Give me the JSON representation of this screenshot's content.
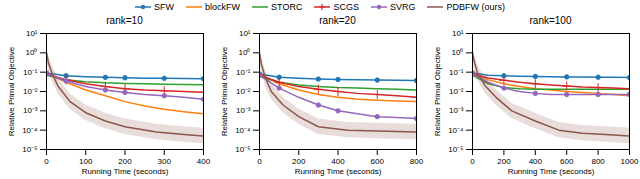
{
  "chart_data": [
    {
      "type": "line",
      "title": "rank=10",
      "x_label": "Running Time (seconds)",
      "y_label": "Relative Primal Objective",
      "log": "y",
      "grid": false,
      "legend": "top",
      "xlim": [
        0,
        400
      ],
      "xticks": [
        0,
        100,
        200,
        300,
        400
      ],
      "ylim": [
        1e-05,
        10
      ],
      "yticks": [
        {
          "value": 1e-05,
          "label": "10⁻⁵"
        },
        {
          "value": 0.0001,
          "label": "10⁻⁴"
        },
        {
          "value": 0.001,
          "label": "10⁻³"
        },
        {
          "value": 0.01,
          "label": "10⁻²"
        },
        {
          "value": 0.1,
          "label": "10⁻¹"
        },
        {
          "value": 1,
          "label": "10⁰"
        },
        {
          "value": 10,
          "label": "10¹"
        }
      ],
      "series": [
        {
          "name": "SFW",
          "color": "#1f77b4",
          "marker": "circle",
          "x": [
            0,
            50,
            100,
            150,
            200,
            250,
            300,
            350,
            400
          ],
          "values": [
            0.09,
            0.065,
            0.058,
            0.054,
            0.051,
            0.049,
            0.048,
            0.047,
            0.046
          ]
        },
        {
          "name": "blockFW",
          "color": "#ff7f0e",
          "x": [
            0,
            50,
            100,
            150,
            200,
            250,
            300,
            350,
            400
          ],
          "values": [
            0.09,
            0.03,
            0.012,
            0.006,
            0.003,
            0.0018,
            0.0012,
            0.0009,
            0.0007
          ]
        },
        {
          "name": "STORC",
          "color": "#2ca02c",
          "x": [
            0,
            50,
            100,
            150,
            200,
            250,
            300,
            350,
            400
          ],
          "values": [
            0.07,
            0.04,
            0.032,
            0.028,
            0.026,
            0.025,
            0.024,
            0.023,
            0.022
          ]
        },
        {
          "name": "SCGS",
          "color": "#d62728",
          "marker": "plus",
          "x": [
            0,
            50,
            100,
            150,
            200,
            250,
            300,
            350,
            400
          ],
          "values": [
            0.08,
            0.04,
            0.025,
            0.018,
            0.014,
            0.012,
            0.011,
            0.01,
            0.009
          ]
        },
        {
          "name": "SVRG",
          "color": "#9467bd",
          "marker": "circle",
          "x": [
            0,
            50,
            100,
            150,
            200,
            250,
            300,
            350,
            400
          ],
          "values": [
            0.08,
            0.035,
            0.018,
            0.012,
            0.009,
            0.007,
            0.006,
            0.005,
            0.004
          ]
        },
        {
          "name": "PDBFW (ours)",
          "color": "#8c564b",
          "x": [
            0,
            5,
            15,
            30,
            60,
            100,
            150,
            200,
            280,
            350,
            400
          ],
          "values": [
            1.0,
            0.3,
            0.08,
            0.018,
            0.003,
            0.0008,
            0.0003,
            0.00015,
            8e-05,
            6e-05,
            5e-05
          ],
          "lower": [
            0.4,
            0.12,
            0.032,
            0.0072,
            0.0012,
            0.00032,
            0.00012,
            6e-05,
            3.2e-05,
            2.4e-05,
            2e-05
          ],
          "upper": [
            2.5,
            0.75,
            0.2,
            0.045,
            0.0075,
            0.002,
            0.00075,
            0.000375,
            0.0002,
            0.00015,
            0.000125
          ]
        }
      ]
    },
    {
      "type": "line",
      "title": "rank=20",
      "x_label": "Running Time (seconds)",
      "y_label": "Relative Primal Objective",
      "log": "y",
      "grid": false,
      "legend": "top",
      "xlim": [
        0,
        800
      ],
      "xticks": [
        0,
        200,
        400,
        600,
        800
      ],
      "ylim": [
        1e-05,
        10
      ],
      "yticks": [
        {
          "value": 1e-05,
          "label": "10⁻⁵"
        },
        {
          "value": 0.0001,
          "label": "10⁻⁴"
        },
        {
          "value": 0.001,
          "label": "10⁻³"
        },
        {
          "value": 0.01,
          "label": "10⁻²"
        },
        {
          "value": 0.1,
          "label": "10⁻¹"
        },
        {
          "value": 1,
          "label": "10⁰"
        },
        {
          "value": 10,
          "label": "10¹"
        }
      ],
      "series": [
        {
          "name": "SFW",
          "color": "#1f77b4",
          "marker": "circle",
          "x": [
            0,
            100,
            200,
            300,
            400,
            500,
            600,
            700,
            800
          ],
          "values": [
            0.08,
            0.055,
            0.048,
            0.044,
            0.042,
            0.04,
            0.039,
            0.038,
            0.037
          ]
        },
        {
          "name": "blockFW",
          "color": "#ff7f0e",
          "x": [
            0,
            100,
            200,
            300,
            400,
            500,
            600,
            700,
            800
          ],
          "values": [
            0.08,
            0.025,
            0.012,
            0.007,
            0.005,
            0.004,
            0.0035,
            0.0032,
            0.003
          ]
        },
        {
          "name": "STORC",
          "color": "#2ca02c",
          "x": [
            0,
            100,
            200,
            300,
            400,
            500,
            600,
            700,
            800
          ],
          "values": [
            0.06,
            0.03,
            0.022,
            0.018,
            0.016,
            0.015,
            0.014,
            0.013,
            0.012
          ]
        },
        {
          "name": "SCGS",
          "color": "#d62728",
          "marker": "plus",
          "x": [
            0,
            100,
            200,
            300,
            400,
            500,
            600,
            700,
            800
          ],
          "values": [
            0.07,
            0.03,
            0.018,
            0.013,
            0.01,
            0.008,
            0.007,
            0.006,
            0.005
          ]
        },
        {
          "name": "SVRG",
          "color": "#9467bd",
          "marker": "circle",
          "x": [
            0,
            100,
            200,
            300,
            400,
            500,
            600,
            700,
            800
          ],
          "values": [
            0.07,
            0.015,
            0.005,
            0.002,
            0.001,
            0.0007,
            0.0005,
            0.00045,
            0.0004
          ]
        },
        {
          "name": "PDBFW (ours)",
          "color": "#8c564b",
          "x": [
            0,
            10,
            30,
            60,
            120,
            200,
            300,
            450,
            600,
            700,
            800
          ],
          "values": [
            1.0,
            0.25,
            0.05,
            0.01,
            0.002,
            0.0005,
            0.00015,
            0.0001,
            9e-05,
            8.5e-05,
            8e-05
          ],
          "lower": [
            0.4,
            0.1,
            0.02,
            0.004,
            0.0008,
            0.0002,
            6e-05,
            4e-05,
            3.6e-05,
            3.4e-05,
            3.2e-05
          ],
          "upper": [
            2.5,
            0.625,
            0.125,
            0.025,
            0.005,
            0.00125,
            0.000375,
            0.00025,
            0.000225,
            0.0002125,
            0.0002
          ]
        }
      ]
    },
    {
      "type": "line",
      "title": "rank=100",
      "x_label": "Running Time (seconds)",
      "y_label": "Relative Primal Objective",
      "log": "y",
      "grid": false,
      "legend": "top",
      "xlim": [
        0,
        1000
      ],
      "xticks": [
        0,
        200,
        400,
        600,
        800,
        1000
      ],
      "ylim": [
        1e-05,
        10
      ],
      "yticks": [
        {
          "value": 1e-05,
          "label": "10⁻⁵"
        },
        {
          "value": 0.0001,
          "label": "10⁻⁴"
        },
        {
          "value": 0.001,
          "label": "10⁻³"
        },
        {
          "value": 0.01,
          "label": "10⁻²"
        },
        {
          "value": 0.1,
          "label": "10⁻¹"
        },
        {
          "value": 1,
          "label": "10⁰"
        },
        {
          "value": 10,
          "label": "10¹"
        }
      ],
      "series": [
        {
          "name": "SFW",
          "color": "#1f77b4",
          "marker": "circle",
          "x": [
            0,
            100,
            200,
            300,
            400,
            500,
            600,
            700,
            800,
            900,
            1000
          ],
          "values": [
            0.09,
            0.07,
            0.065,
            0.062,
            0.06,
            0.058,
            0.057,
            0.056,
            0.055,
            0.054,
            0.053
          ]
        },
        {
          "name": "blockFW",
          "color": "#ff7f0e",
          "x": [
            0,
            100,
            200,
            300,
            400,
            500,
            600,
            700,
            800,
            900,
            1000
          ],
          "values": [
            0.09,
            0.04,
            0.025,
            0.018,
            0.014,
            0.012,
            0.01,
            0.009,
            0.008,
            0.007,
            0.006
          ]
        },
        {
          "name": "STORC",
          "color": "#2ca02c",
          "x": [
            0,
            100,
            200,
            300,
            400,
            500,
            600,
            700,
            800,
            900,
            1000
          ],
          "values": [
            0.07,
            0.025,
            0.016,
            0.014,
            0.013,
            0.013,
            0.013,
            0.013,
            0.013,
            0.013,
            0.013
          ]
        },
        {
          "name": "SCGS",
          "color": "#d62728",
          "marker": "plus",
          "x": [
            0,
            100,
            200,
            300,
            400,
            500,
            600,
            700,
            800,
            900,
            1000
          ],
          "values": [
            0.08,
            0.05,
            0.038,
            0.03,
            0.025,
            0.022,
            0.019,
            0.017,
            0.016,
            0.015,
            0.014
          ]
        },
        {
          "name": "SVRG",
          "color": "#9467bd",
          "marker": "circle",
          "x": [
            0,
            100,
            200,
            300,
            400,
            500,
            600,
            700,
            800,
            900,
            1000
          ],
          "values": [
            0.08,
            0.03,
            0.015,
            0.01,
            0.008,
            0.007,
            0.007,
            0.007,
            0.007,
            0.007,
            0.007
          ]
        },
        {
          "name": "PDBFW (ours)",
          "color": "#8c564b",
          "x": [
            0,
            10,
            30,
            80,
            150,
            250,
            400,
            550,
            700,
            850,
            1000
          ],
          "values": [
            1.0,
            0.4,
            0.1,
            0.02,
            0.005,
            0.001,
            0.0003,
            0.0001,
            7e-05,
            6e-05,
            5e-05
          ],
          "lower": [
            0.4,
            0.16,
            0.04,
            0.008,
            0.002,
            0.0004,
            0.00012,
            4e-05,
            2.8e-05,
            2.4e-05,
            2e-05
          ],
          "upper": [
            2.5,
            1,
            0.25,
            0.05,
            0.0125,
            0.0025,
            0.00075,
            0.00025,
            0.000175,
            0.00015,
            0.000125
          ]
        }
      ]
    }
  ]
}
